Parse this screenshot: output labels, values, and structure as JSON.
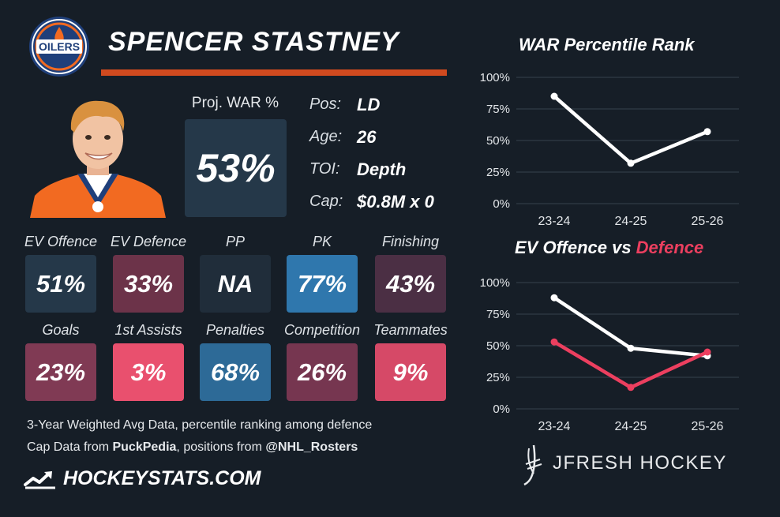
{
  "player": {
    "name": "SPENCER STASTNEY",
    "team_logo": "oilers-logo",
    "team_logo_text": "OILERS"
  },
  "war": {
    "label": "Proj. WAR %",
    "value": "53%"
  },
  "info": [
    {
      "label": "Pos:",
      "value": "LD"
    },
    {
      "label": "Age:",
      "value": "26"
    },
    {
      "label": "TOI:",
      "value": "Depth"
    },
    {
      "label": "Cap:",
      "value": "$0.8M x 0"
    }
  ],
  "stats_row1": [
    {
      "label": "EV Offence",
      "value": "51%",
      "color": "#253849"
    },
    {
      "label": "EV Defence",
      "value": "33%",
      "color": "#6c3349"
    },
    {
      "label": "PP",
      "value": "NA",
      "color": "#202d3a"
    },
    {
      "label": "PK",
      "value": "77%",
      "color": "#2f77ad"
    },
    {
      "label": "Finishing",
      "value": "43%",
      "color": "#4b2f44"
    }
  ],
  "stats_row2": [
    {
      "label": "Goals",
      "value": "23%",
      "color": "#803a54"
    },
    {
      "label": "1st Assists",
      "value": "3%",
      "color": "#e9506e"
    },
    {
      "label": "Penalties",
      "value": "68%",
      "color": "#2d6a97"
    },
    {
      "label": "Competition",
      "value": "26%",
      "color": "#763650"
    },
    {
      "label": "Teammates",
      "value": "9%",
      "color": "#d64967"
    }
  ],
  "footer": {
    "line1": "3-Year Weighted Avg Data, percentile ranking among defence",
    "line2_prefix": "Cap Data from ",
    "line2_source1": "PuckPedia",
    "line2_middle": ", positions from ",
    "line2_source2": "@NHL_Rosters",
    "brand": "HOCKEYSTATS.COM",
    "brand_icon": "hockeystats-logo-icon",
    "credit": "JFRESH HOCKEY",
    "credit_icon": "jfresh-logo-icon"
  },
  "colors": {
    "accent": "#d04a1f",
    "offence": "#ffffff",
    "defence": "#ec3f5f",
    "background": "#161e27"
  },
  "chart_data": [
    {
      "type": "line",
      "title": "WAR Percentile Rank",
      "categories": [
        "23-24",
        "24-25",
        "25-26"
      ],
      "yticks": [
        "0%",
        "25%",
        "50%",
        "75%",
        "100%"
      ],
      "ylim": [
        0,
        100
      ],
      "grid": true,
      "series": [
        {
          "values": [
            85,
            32,
            57
          ],
          "color": "#ffffff"
        }
      ]
    },
    {
      "type": "line",
      "title_part1": "EV Offence vs ",
      "title_part2": "Defence",
      "categories": [
        "23-24",
        "24-25",
        "25-26"
      ],
      "yticks": [
        "0%",
        "25%",
        "50%",
        "75%",
        "100%"
      ],
      "ylim": [
        0,
        100
      ],
      "grid": true,
      "series": [
        {
          "name": "EV Offence",
          "values": [
            88,
            48,
            42
          ],
          "color": "#ffffff"
        },
        {
          "name": "Defence",
          "values": [
            53,
            17,
            45
          ],
          "color": "#ec3f5f"
        }
      ]
    }
  ]
}
